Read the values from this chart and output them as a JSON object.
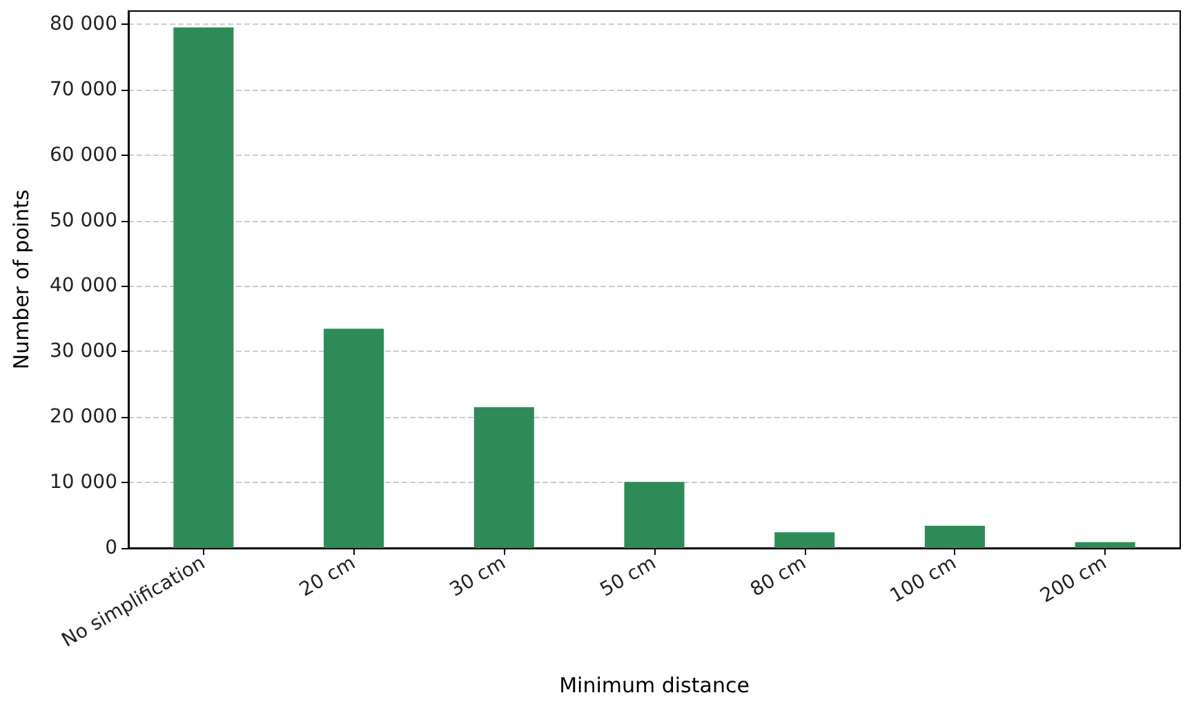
{
  "chart_data": {
    "type": "bar",
    "xlabel": "Minimum distance",
    "ylabel": "Number of points",
    "categories": [
      "No simplification",
      "20 cm",
      "30 cm",
      "50 cm",
      "80 cm",
      "100 cm",
      "200 cm"
    ],
    "values": [
      79500,
      33500,
      21500,
      10100,
      2400,
      3400,
      900
    ],
    "color": "#2e8b57",
    "ylim": [
      0,
      82000
    ],
    "yticks": [
      {
        "value": 0,
        "label": "0"
      },
      {
        "value": 10000,
        "label": "10 000"
      },
      {
        "value": 20000,
        "label": "20 000"
      },
      {
        "value": 30000,
        "label": "30 000"
      },
      {
        "value": 40000,
        "label": "40 000"
      },
      {
        "value": 50000,
        "label": "50 000"
      },
      {
        "value": 60000,
        "label": "60 000"
      },
      {
        "value": 70000,
        "label": "70 000"
      },
      {
        "value": 80000,
        "label": "80 000"
      }
    ],
    "grid": "y"
  }
}
